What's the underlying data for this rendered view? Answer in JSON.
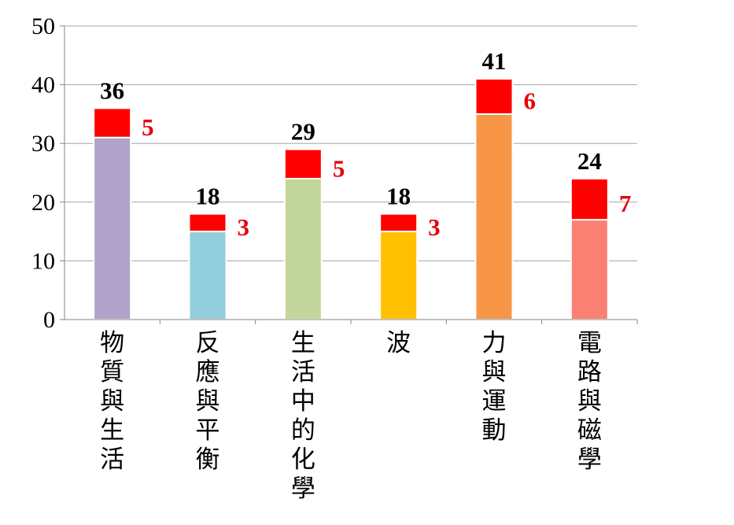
{
  "chart_data": {
    "type": "bar",
    "stacked": true,
    "categories": [
      "物質與生活",
      "反應與平衡",
      "生活中的化學",
      "波",
      "力與運動",
      "電路與磁學"
    ],
    "series": [
      {
        "values": [
          31,
          15,
          24,
          15,
          35,
          17
        ]
      },
      {
        "values": [
          5,
          3,
          5,
          3,
          6,
          7
        ]
      }
    ],
    "totals": [
      36,
      18,
      29,
      18,
      41,
      24
    ],
    "bottom_colors": [
      "#b0a2c9",
      "#92cddd",
      "#c3d69b",
      "#ffc000",
      "#f79646",
      "#fa8072"
    ],
    "top_color": "#ff0000",
    "top_label_color": "#e8000b",
    "yticks": [
      0,
      10,
      20,
      30,
      40,
      50
    ],
    "ylim": [
      0,
      50
    ],
    "grid": true,
    "title": "",
    "xlabel": "",
    "ylabel": ""
  }
}
